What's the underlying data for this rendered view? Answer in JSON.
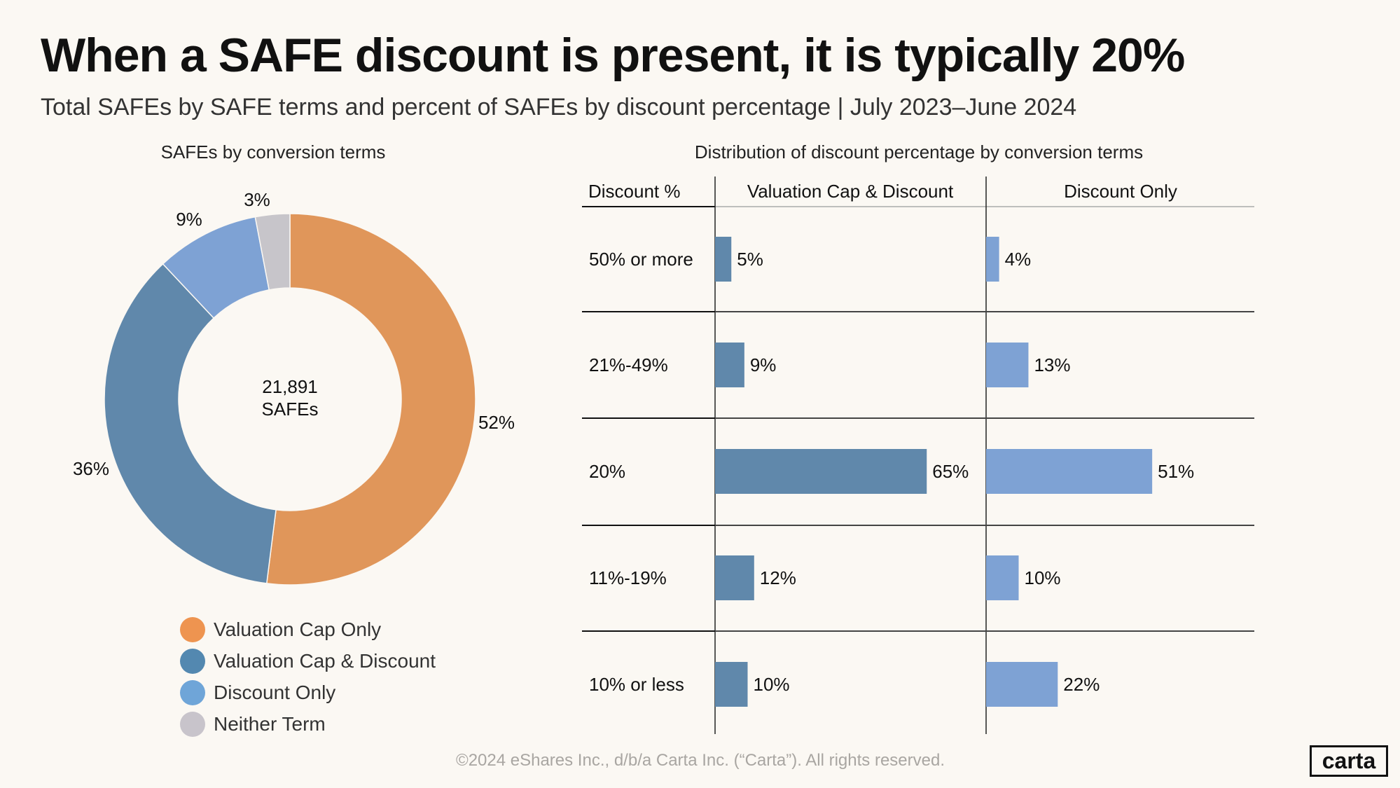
{
  "header": {
    "title": "When a SAFE discount is present, it is typically 20%",
    "subtitle": "Total SAFEs by SAFE terms and percent of SAFEs by discount percentage  |  July 2023–June 2024"
  },
  "chart_data": [
    {
      "type": "pie",
      "title": "SAFEs by conversion terms",
      "center_label": [
        "21,891",
        "SAFEs"
      ],
      "categories": [
        "Valuation Cap Only",
        "Valuation Cap & Discount",
        "Discount Only",
        "Neither Term"
      ],
      "values": [
        52,
        36,
        9,
        3
      ],
      "labels": [
        "52%",
        "36%",
        "9%",
        "3%"
      ],
      "colors": [
        "#e0965a",
        "#6088ab",
        "#7ea2d4",
        "#c7c5ca"
      ],
      "legend_colors": [
        "#ee9450",
        "#5388b0",
        "#6fa5d8",
        "#c8c4cb"
      ],
      "donut": true,
      "legend_placement": "bottom"
    },
    {
      "type": "bar",
      "orientation": "horizontal",
      "title": "Distribution of discount percentage by conversion terms",
      "row_header": "Discount %",
      "categories": [
        "50% or more",
        "21%-49%",
        "20%",
        "11%-19%",
        "10% or less"
      ],
      "series": [
        {
          "name": "Valuation Cap & Discount",
          "values": [
            5,
            9,
            65,
            12,
            10
          ],
          "color": "#6088ab"
        },
        {
          "name": "Discount Only",
          "values": [
            4,
            13,
            51,
            10,
            22
          ],
          "color": "#7ea2d4"
        }
      ],
      "unit": "%"
    }
  ],
  "footer": {
    "copyright": "©2024 eShares Inc., d/b/a Carta Inc. (“Carta”). All rights reserved.",
    "logo": "carta"
  }
}
